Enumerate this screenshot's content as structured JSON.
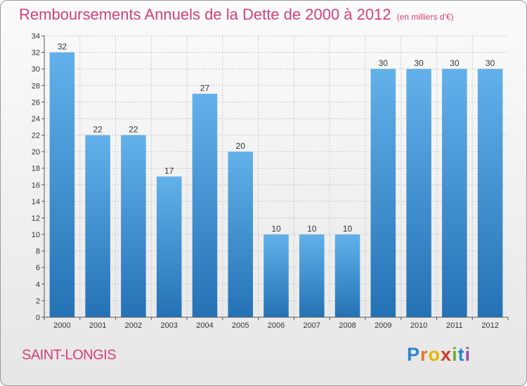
{
  "header": {
    "title": "Remboursements Annuels de la Dette de 2000 à 2012",
    "subtitle": "(en milliers d'€)"
  },
  "footer": {
    "commune": "SAINT-LONGIS",
    "logo_letters": [
      "P",
      "r",
      "o",
      "x",
      "i",
      "t",
      "i"
    ],
    "logo_colors": [
      "#2f86c8",
      "#e8732a",
      "#e8b400",
      "#d23a2a",
      "#6cab2e",
      "#2f86c8",
      "#9b4fa4"
    ]
  },
  "colors": {
    "bar_top": "#62b1ea",
    "bar_bottom": "#2472b5",
    "grid": "#c8c8c8",
    "text": "#333333",
    "accent": "#d4407a"
  },
  "chart_data": {
    "type": "bar",
    "title": "Remboursements Annuels de la Dette de 2000 à 2012",
    "subtitle": "(en milliers d'€)",
    "categories": [
      "2000",
      "2001",
      "2002",
      "2003",
      "2004",
      "2005",
      "2006",
      "2007",
      "2008",
      "2009",
      "2010",
      "2011",
      "2012"
    ],
    "values": [
      32,
      22,
      22,
      17,
      27,
      20,
      10,
      10,
      10,
      30,
      30,
      30,
      30
    ],
    "ylim": [
      0,
      34
    ],
    "yticks": [
      0,
      2,
      4,
      6,
      8,
      10,
      12,
      14,
      16,
      18,
      20,
      22,
      24,
      26,
      28,
      30,
      32,
      34
    ],
    "grid": true,
    "xlabel": "",
    "ylabel": ""
  }
}
